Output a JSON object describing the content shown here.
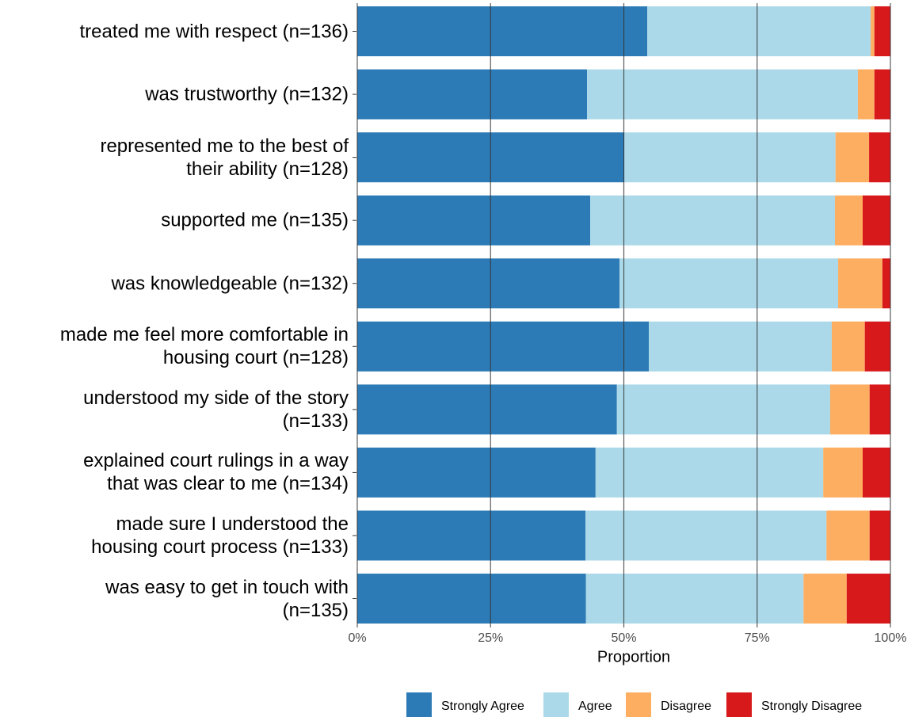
{
  "chart_data": {
    "type": "stacked-barh",
    "categories": [
      "treated me with respect (n=136)",
      "was trustworthy (n=132)",
      "represented me to the best of\ntheir ability (n=128)",
      "supported me (n=135)",
      "was knowledgeable (n=132)",
      "made me feel more comfortable in\nhousing court (n=128)",
      "understood my side of the story\n(n=133)",
      "explained court rulings in a way\nthat was clear to me (n=134)",
      "made sure I understood the\nhousing court process (n=133)",
      "was easy to get in touch with\n(n=135)"
    ],
    "series": [
      {
        "name": "Strongly Agree",
        "color": "#2c7bb6",
        "values": [
          54.4,
          43.1,
          50.1,
          43.7,
          49.2,
          54.7,
          48.7,
          44.7,
          42.8,
          42.9
        ]
      },
      {
        "name": "Agree",
        "color": "#abd9e9",
        "values": [
          41.9,
          50.8,
          39.6,
          45.9,
          41.0,
          34.3,
          40.0,
          42.7,
          45.2,
          40.8
        ]
      },
      {
        "name": "Disagree",
        "color": "#fdae61",
        "values": [
          0.7,
          3.1,
          6.3,
          5.2,
          8.3,
          6.2,
          7.4,
          7.4,
          8.1,
          8.1
        ]
      },
      {
        "name": "Strongly Disagree",
        "color": "#d7191c",
        "values": [
          3.0,
          3.0,
          4.0,
          5.2,
          1.5,
          4.8,
          3.9,
          5.2,
          3.9,
          8.2
        ]
      }
    ],
    "x_label": "Proportion",
    "xlim": [
      0,
      100
    ],
    "xticks": [
      {
        "value": 0,
        "label": "0%"
      },
      {
        "value": 25,
        "label": "25%"
      },
      {
        "value": 50,
        "label": "50%"
      },
      {
        "value": 75,
        "label": "75%"
      },
      {
        "value": 100,
        "label": "100%"
      }
    ],
    "grid": true,
    "legend": "bottom"
  }
}
